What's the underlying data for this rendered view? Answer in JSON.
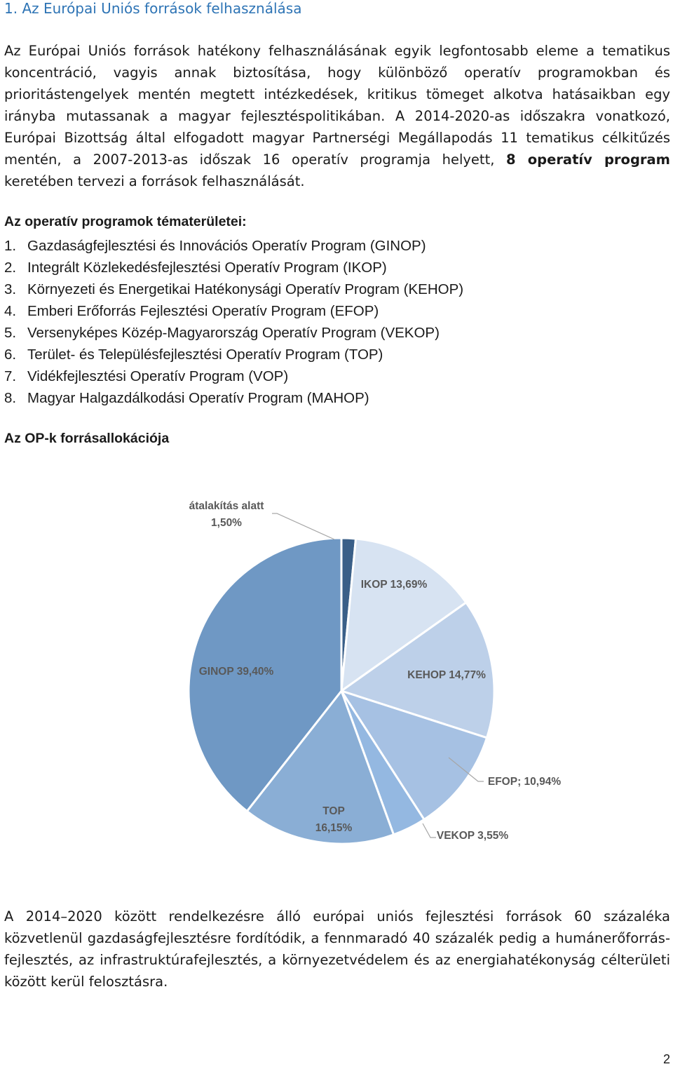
{
  "heading": "1. Az Európai Uniós források felhasználása",
  "intro": {
    "part1": "Az Európai Uniós források hatékony felhasználásának egyik legfontosabb eleme a tematikus koncentráció, vagyis annak biztosítása, hogy különböző operatív programokban és prioritástengelyek mentén megtett intézkedések, kritikus tömeget alkotva hatásaikban egy irányba mutassanak a magyar fejlesztéspolitikában. A 2014-2020-as időszakra vonatkozó, Európai Bizottság által elfogadott magyar Partnerségi Megállapodás 11 tematikus célkitűzés mentén, a 2007-2013-as időszak 16 operatív programja helyett, ",
    "bold": "8 operatív program",
    "part2": " keretében tervezi a források felhasználását."
  },
  "op_heading": "Az operatív programok tématerületei:",
  "op_list": [
    {
      "num": "1.",
      "label": "Gazdaságfejlesztési és Innovációs Operatív Program (GINOP)"
    },
    {
      "num": "2.",
      "label": "Integrált Közlekedésfejlesztési Operatív Program (IKOP)"
    },
    {
      "num": "3.",
      "label": "Környezeti és Energetikai Hatékonysági Operatív Program (KEHOP)"
    },
    {
      "num": "4.",
      "label": "Emberi Erőforrás Fejlesztési Operatív Program (EFOP)"
    },
    {
      "num": "5.",
      "label": "Versenyképes Közép-Magyarország Operatív Program (VEKOP)"
    },
    {
      "num": "6.",
      "label": "Terület- és Településfejlesztési Operatív Program (TOP)"
    },
    {
      "num": "7.",
      "label": "Vidékfejlesztési Operatív Program (VOP)"
    },
    {
      "num": "8.",
      "label": "Magyar Halgazdálkodási Operatív Program (MAHOP)"
    }
  ],
  "chart_heading": "Az OP-k forrásallokációja",
  "chart_data": {
    "type": "pie",
    "title": "",
    "slices": [
      {
        "name": "átalakítás alatt",
        "value": 1.5,
        "label_lines": [
          "átalakítás alatt",
          "1,50%"
        ],
        "color": "#3a5f88"
      },
      {
        "name": "IKOP",
        "value": 13.69,
        "label_lines": [
          "IKOP 13,69%"
        ],
        "color": "#d7e3f2"
      },
      {
        "name": "KEHOP",
        "value": 14.77,
        "label_lines": [
          "KEHOP 14,77%"
        ],
        "color": "#bdd0e9"
      },
      {
        "name": "EFOP",
        "value": 10.94,
        "label_lines": [
          "EFOP; 10,94%"
        ],
        "color": "#a6c1e3"
      },
      {
        "name": "VEKOP",
        "value": 3.55,
        "label_lines": [
          "VEKOP 3,55%"
        ],
        "color": "#94b8e1"
      },
      {
        "name": "TOP",
        "value": 16.15,
        "label_lines": [
          "TOP",
          "16,15%"
        ],
        "color": "#8aaed5"
      },
      {
        "name": "GINOP",
        "value": 39.4,
        "label_lines": [
          "GINOP 39,40%"
        ],
        "color": "#6f98c4"
      }
    ]
  },
  "closing": "A 2014–2020 között rendelkezésre álló európai uniós fejlesztési források 60 százaléka közvetlenül gazdaságfejlesztésre fordítódik, a fennmaradó 40 százalék pedig a humánerőforrás-fejlesztés, az infrastruktúrafejlesztés, a környezetvédelem és az energiahatékonyság célterületi között kerül felosztásra.",
  "page_number": "2"
}
